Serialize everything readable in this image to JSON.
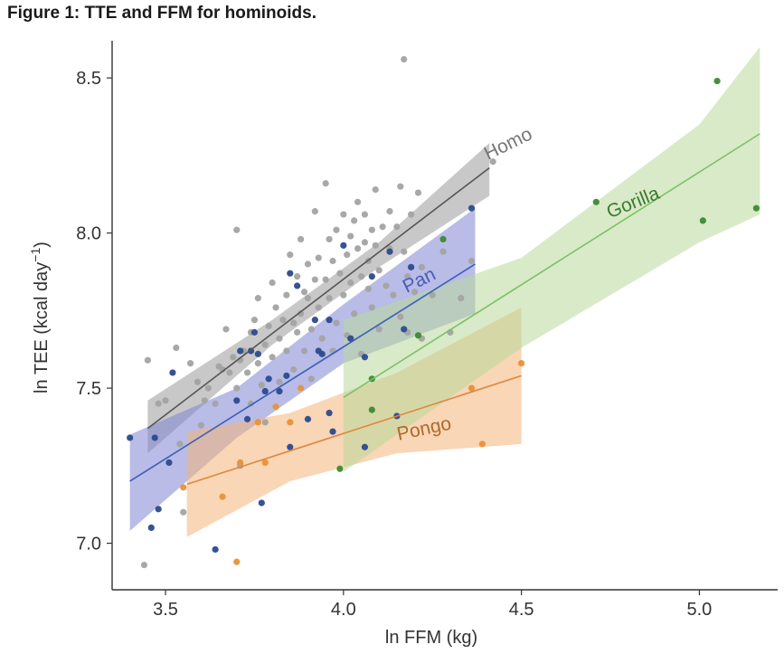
{
  "title": "Figure 1: TTE and FFM for hominoids.",
  "chart_data": {
    "type": "scatter",
    "xlabel": "ln FFM (kg)",
    "ylabel": "ln TEE (kcal day",
    "ylabel_sup": "−1",
    "ylabel_close": ")",
    "xlim": [
      3.35,
      5.22
    ],
    "ylim": [
      6.85,
      8.62
    ],
    "xticks": [
      3.5,
      4.0,
      4.5,
      5.0
    ],
    "xtick_labels": [
      "3.5",
      "4.0",
      "4.5",
      "5.0"
    ],
    "yticks": [
      7.0,
      7.5,
      8.0,
      8.5
    ],
    "ytick_labels": [
      "7.0",
      "7.5",
      "8.0",
      "8.5"
    ],
    "grid": false,
    "series": [
      {
        "name": "Homo",
        "color": "#a3a3a3",
        "line_color": "#555555",
        "band_color": "#9a9a9a",
        "label_pos": [
          4.47,
          8.27
        ],
        "label_angle": -26,
        "fit": [
          [
            3.45,
            7.37
          ],
          [
            4.41,
            8.21
          ]
        ],
        "band_upper": [
          [
            3.45,
            7.46
          ],
          [
            3.8,
            7.72
          ],
          [
            4.1,
            7.97
          ],
          [
            4.41,
            8.29
          ]
        ],
        "band_lower": [
          [
            3.45,
            7.29
          ],
          [
            3.8,
            7.64
          ],
          [
            4.1,
            7.89
          ],
          [
            4.41,
            8.12
          ]
        ],
        "points": [
          [
            3.44,
            6.93
          ],
          [
            3.45,
            7.59
          ],
          [
            3.48,
            7.45
          ],
          [
            3.5,
            7.46
          ],
          [
            3.53,
            7.63
          ],
          [
            3.54,
            7.32
          ],
          [
            3.55,
            7.1
          ],
          [
            3.57,
            7.58
          ],
          [
            3.59,
            7.52
          ],
          [
            3.6,
            7.38
          ],
          [
            3.61,
            7.46
          ],
          [
            3.62,
            7.5
          ],
          [
            3.64,
            7.45
          ],
          [
            3.65,
            7.57
          ],
          [
            3.66,
            7.56
          ],
          [
            3.67,
            7.69
          ],
          [
            3.68,
            7.55
          ],
          [
            3.69,
            7.6
          ],
          [
            3.7,
            7.5
          ],
          [
            3.7,
            8.01
          ],
          [
            3.71,
            7.59
          ],
          [
            3.71,
            7.25
          ],
          [
            3.72,
            7.62
          ],
          [
            3.73,
            7.55
          ],
          [
            3.74,
            7.68
          ],
          [
            3.74,
            7.45
          ],
          [
            3.75,
            7.72
          ],
          [
            3.76,
            7.79
          ],
          [
            3.76,
            7.58
          ],
          [
            3.77,
            7.51
          ],
          [
            3.78,
            7.64
          ],
          [
            3.78,
            7.39
          ],
          [
            3.79,
            7.7
          ],
          [
            3.8,
            7.6
          ],
          [
            3.8,
            7.84
          ],
          [
            3.81,
            7.76
          ],
          [
            3.82,
            7.66
          ],
          [
            3.82,
            7.52
          ],
          [
            3.83,
            7.72
          ],
          [
            3.84,
            7.8
          ],
          [
            3.84,
            7.62
          ],
          [
            3.85,
            7.93
          ],
          [
            3.86,
            7.71
          ],
          [
            3.86,
            7.56
          ],
          [
            3.87,
            7.86
          ],
          [
            3.87,
            7.68
          ],
          [
            3.88,
            7.74
          ],
          [
            3.88,
            7.98
          ],
          [
            3.89,
            7.81
          ],
          [
            3.89,
            7.62
          ],
          [
            3.9,
            7.9
          ],
          [
            3.9,
            7.79
          ],
          [
            3.91,
            7.69
          ],
          [
            3.91,
            7.53
          ],
          [
            3.92,
            8.07
          ],
          [
            3.92,
            7.85
          ],
          [
            3.93,
            7.76
          ],
          [
            3.93,
            7.92
          ],
          [
            3.94,
            7.66
          ],
          [
            3.95,
            7.85
          ],
          [
            3.95,
            8.16
          ],
          [
            3.96,
            7.98
          ],
          [
            3.96,
            7.79
          ],
          [
            3.97,
            7.62
          ],
          [
            3.97,
            7.91
          ],
          [
            3.98,
            8.01
          ],
          [
            3.98,
            7.71
          ],
          [
            3.99,
            7.87
          ],
          [
            4.0,
            7.8
          ],
          [
            4.0,
            8.06
          ],
          [
            4.01,
            7.93
          ],
          [
            4.01,
            7.67
          ],
          [
            4.02,
            7.99
          ],
          [
            4.02,
            7.84
          ],
          [
            4.03,
            8.04
          ],
          [
            4.03,
            7.74
          ],
          [
            4.04,
            7.95
          ],
          [
            4.04,
            8.1
          ],
          [
            4.05,
            7.86
          ],
          [
            4.05,
            7.61
          ],
          [
            4.06,
            8.06
          ],
          [
            4.06,
            7.97
          ],
          [
            4.07,
            7.82
          ],
          [
            4.07,
            7.91
          ],
          [
            4.08,
            8.01
          ],
          [
            4.08,
            7.76
          ],
          [
            4.09,
            7.96
          ],
          [
            4.09,
            8.14
          ],
          [
            4.1,
            7.88
          ],
          [
            4.1,
            7.69
          ],
          [
            4.11,
            8.02
          ],
          [
            4.12,
            7.83
          ],
          [
            4.13,
            7.95
          ],
          [
            4.13,
            8.07
          ],
          [
            4.14,
            7.8
          ],
          [
            4.15,
            8.02
          ],
          [
            4.16,
            7.73
          ],
          [
            4.16,
            8.15
          ],
          [
            4.17,
            8.56
          ],
          [
            4.17,
            7.94
          ],
          [
            4.18,
            7.86
          ],
          [
            4.18,
            7.68
          ],
          [
            4.19,
            8.06
          ],
          [
            4.2,
            7.81
          ],
          [
            4.21,
            8.13
          ],
          [
            4.22,
            7.89
          ],
          [
            4.22,
            7.66
          ],
          [
            4.25,
            7.8
          ],
          [
            4.28,
            7.94
          ],
          [
            4.3,
            7.68
          ],
          [
            4.33,
            7.79
          ],
          [
            4.36,
            7.91
          ],
          [
            4.42,
            8.23
          ]
        ]
      },
      {
        "name": "Pan",
        "color": "#2c4a8e",
        "line_color": "#3c5fb5",
        "band_color": "#7d85d4",
        "label_pos": [
          4.22,
          7.83
        ],
        "label_angle": -26,
        "fit": [
          [
            3.4,
            7.2
          ],
          [
            4.37,
            7.9
          ]
        ],
        "band_upper": [
          [
            3.4,
            7.35
          ],
          [
            3.7,
            7.5
          ],
          [
            4.0,
            7.77
          ],
          [
            4.37,
            8.08
          ]
        ],
        "band_lower": [
          [
            3.4,
            7.04
          ],
          [
            3.7,
            7.34
          ],
          [
            4.0,
            7.58
          ],
          [
            4.37,
            7.74
          ]
        ],
        "points": [
          [
            3.4,
            7.34
          ],
          [
            3.46,
            7.05
          ],
          [
            3.47,
            7.34
          ],
          [
            3.48,
            7.11
          ],
          [
            3.51,
            7.26
          ],
          [
            3.52,
            7.55
          ],
          [
            3.64,
            6.98
          ],
          [
            3.7,
            7.46
          ],
          [
            3.71,
            7.62
          ],
          [
            3.73,
            7.4
          ],
          [
            3.74,
            7.62
          ],
          [
            3.75,
            7.68
          ],
          [
            3.76,
            7.61
          ],
          [
            3.77,
            7.13
          ],
          [
            3.78,
            7.49
          ],
          [
            3.79,
            7.53
          ],
          [
            3.82,
            7.49
          ],
          [
            3.84,
            7.54
          ],
          [
            3.85,
            7.87
          ],
          [
            3.85,
            7.31
          ],
          [
            3.87,
            7.83
          ],
          [
            3.9,
            7.4
          ],
          [
            3.92,
            7.72
          ],
          [
            3.93,
            7.62
          ],
          [
            3.94,
            7.61
          ],
          [
            3.96,
            7.72
          ],
          [
            3.96,
            7.42
          ],
          [
            3.97,
            7.36
          ],
          [
            4.0,
            7.96
          ],
          [
            4.02,
            7.66
          ],
          [
            4.06,
            7.6
          ],
          [
            4.06,
            7.31
          ],
          [
            4.08,
            7.86
          ],
          [
            4.13,
            7.94
          ],
          [
            4.15,
            7.41
          ],
          [
            4.17,
            7.69
          ],
          [
            4.19,
            7.89
          ],
          [
            4.36,
            8.08
          ]
        ]
      },
      {
        "name": "Pongo",
        "color": "#e8913a",
        "line_color": "#e0863a",
        "band_color": "#f2b47a",
        "label_pos": [
          4.23,
          7.35
        ],
        "label_angle": -12,
        "fit": [
          [
            3.56,
            7.19
          ],
          [
            4.5,
            7.54
          ]
        ],
        "band_upper": [
          [
            3.56,
            7.36
          ],
          [
            3.85,
            7.42
          ],
          [
            4.15,
            7.55
          ],
          [
            4.5,
            7.76
          ]
        ],
        "band_lower": [
          [
            3.56,
            7.02
          ],
          [
            3.85,
            7.2
          ],
          [
            4.15,
            7.29
          ],
          [
            4.5,
            7.32
          ]
        ],
        "points": [
          [
            3.55,
            7.18
          ],
          [
            3.66,
            7.15
          ],
          [
            3.7,
            6.94
          ],
          [
            3.71,
            7.26
          ],
          [
            3.76,
            7.39
          ],
          [
            3.78,
            7.26
          ],
          [
            3.81,
            7.44
          ],
          [
            3.85,
            7.39
          ],
          [
            3.88,
            7.5
          ],
          [
            4.36,
            7.5
          ],
          [
            4.39,
            7.32
          ],
          [
            4.5,
            7.58
          ]
        ]
      },
      {
        "name": "Gorilla",
        "color": "#3d8a32",
        "line_color": "#7bc267",
        "band_color": "#b9d99a",
        "label_pos": [
          4.82,
          8.08
        ],
        "label_angle": -22,
        "fit": [
          [
            4.0,
            7.47
          ],
          [
            5.17,
            8.32
          ]
        ],
        "band_upper": [
          [
            4.0,
            7.72
          ],
          [
            4.5,
            7.92
          ],
          [
            5.0,
            8.35
          ],
          [
            5.17,
            8.6
          ]
        ],
        "band_lower": [
          [
            4.0,
            7.23
          ],
          [
            4.5,
            7.63
          ],
          [
            5.0,
            7.97
          ],
          [
            5.17,
            8.06
          ]
        ],
        "points": [
          [
            3.99,
            7.24
          ],
          [
            4.08,
            7.53
          ],
          [
            4.08,
            7.43
          ],
          [
            4.21,
            7.67
          ],
          [
            4.28,
            7.98
          ],
          [
            4.71,
            8.1
          ],
          [
            5.01,
            8.04
          ],
          [
            5.05,
            8.49
          ],
          [
            5.16,
            8.08
          ]
        ]
      }
    ]
  }
}
